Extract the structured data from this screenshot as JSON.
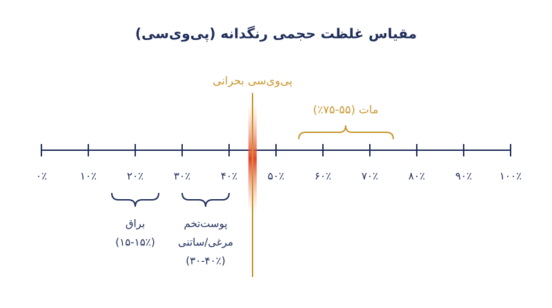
{
  "title": "مقیاس غلظت حجمی رنگدانه (پی‌وی‌سی)",
  "critical_label": "پی‌وی‌سی بحرانی",
  "ticks": [
    "۰٪",
    "۱۰٪",
    "۲۰٪",
    "۳۰٪",
    "۴۰٪",
    "۵۰٪",
    "۶۰٪",
    "۷۰٪",
    "۸۰٪",
    "۹۰٪",
    "۱۰۰٪"
  ],
  "ranges": [
    {
      "lines": [
        "مات (۵۵-۷۵٪)"
      ]
    },
    {
      "lines": [
        "براق",
        "(۱۵-۱۵٪)"
      ]
    },
    {
      "lines": [
        "پوست‌تخم",
        "مرغی/ساتنی",
        "(۳۰-۴۰٪)"
      ]
    }
  ]
}
